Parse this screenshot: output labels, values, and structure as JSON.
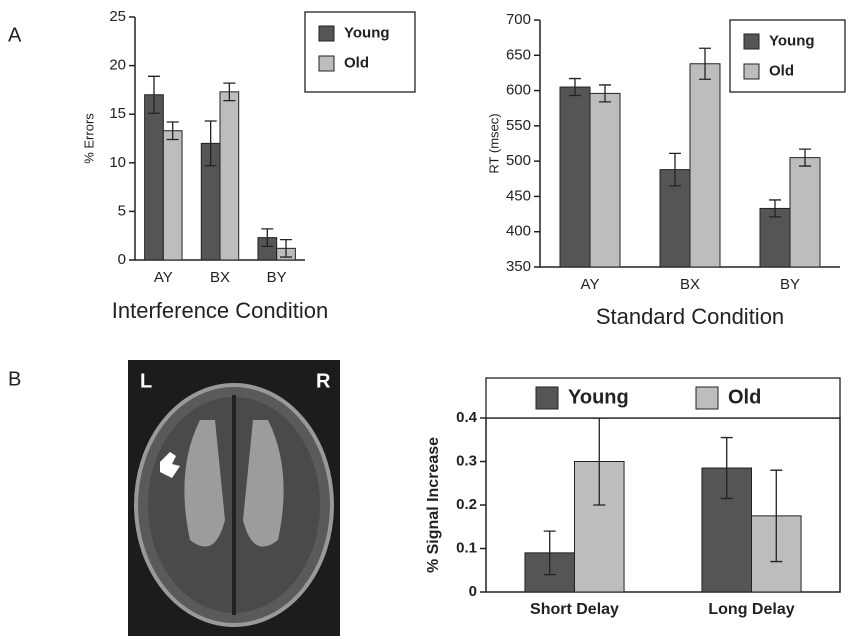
{
  "panel_labels": [
    "A",
    "B"
  ],
  "image_labels": [
    "L",
    "R"
  ],
  "chart_data": [
    {
      "type": "bar",
      "ylabel": "% Errors",
      "xlabel": "Interference Condition",
      "categories": [
        "AY",
        "BX",
        "BY"
      ],
      "series": [
        {
          "name": "Young",
          "color": "#555555",
          "values": [
            17,
            12,
            2.3
          ],
          "errors": [
            1.9,
            2.3,
            0.9
          ]
        },
        {
          "name": "Old",
          "color": "#bdbdbd",
          "values": [
            13.3,
            17.3,
            1.2
          ],
          "errors": [
            0.9,
            0.9,
            0.9
          ]
        }
      ],
      "ylim": [
        0,
        25
      ],
      "yticks": [
        0,
        5,
        10,
        15,
        20,
        25
      ],
      "legend": "upper right"
    },
    {
      "type": "bar",
      "ylabel": "RT (msec)",
      "xlabel": "Standard Condition",
      "categories": [
        "AY",
        "BX",
        "BY"
      ],
      "series": [
        {
          "name": "Young",
          "color": "#555555",
          "values": [
            605,
            488,
            433
          ],
          "errors": [
            12,
            23,
            12
          ]
        },
        {
          "name": "Old",
          "color": "#bdbdbd",
          "values": [
            596,
            638,
            505
          ],
          "errors": [
            12,
            22,
            12
          ]
        }
      ],
      "ylim": [
        350,
        700
      ],
      "yticks": [
        350,
        400,
        450,
        500,
        550,
        600,
        650,
        700
      ],
      "legend": "upper right"
    },
    {
      "type": "bar",
      "ylabel": "% Signal Increase",
      "categories": [
        "Short Delay",
        "Long Delay"
      ],
      "series": [
        {
          "name": "Young",
          "color": "#555555",
          "values": [
            0.09,
            0.285
          ],
          "errors": [
            0.05,
            0.07
          ]
        },
        {
          "name": "Old",
          "color": "#bdbdbd",
          "values": [
            0.3,
            0.175
          ],
          "errors": [
            0.1,
            0.105
          ]
        }
      ],
      "ylim": [
        0,
        0.4
      ],
      "yticks": [
        0,
        0.1,
        0.2,
        0.3,
        0.4
      ],
      "legend": "top"
    }
  ]
}
